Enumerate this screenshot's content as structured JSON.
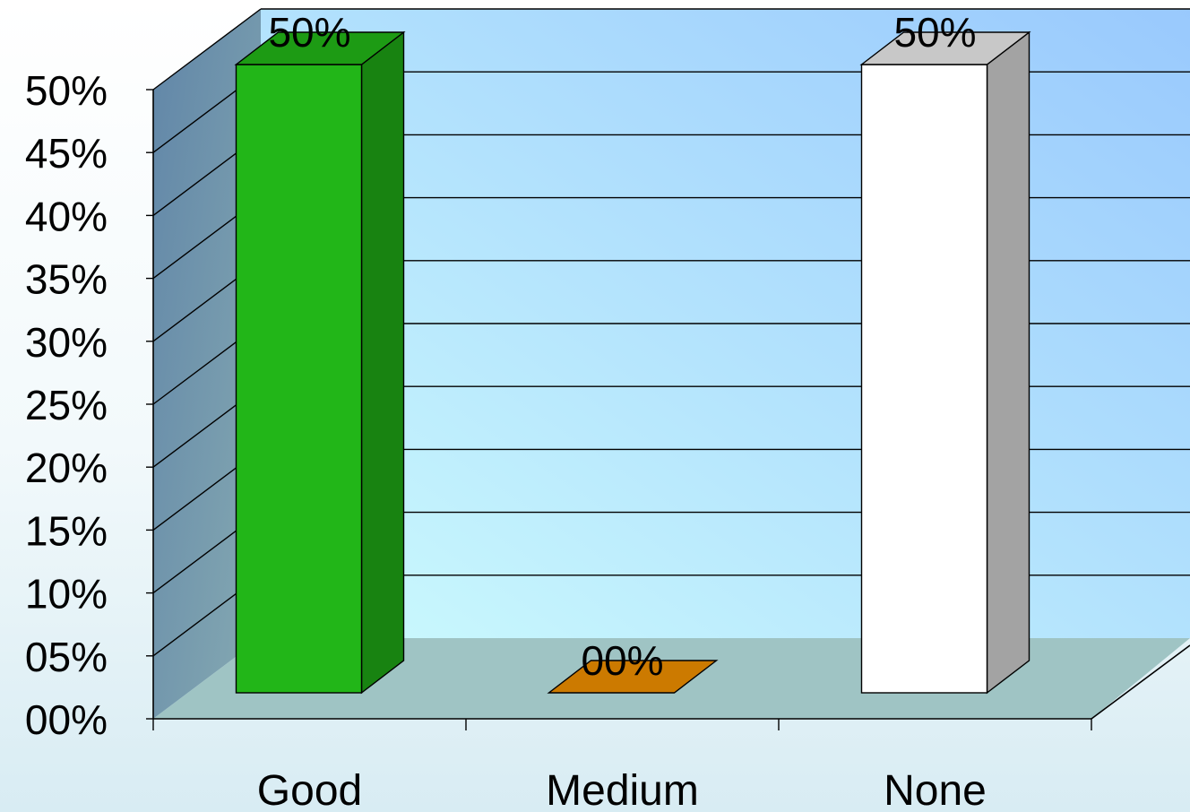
{
  "chart_data": {
    "type": "bar",
    "title": "",
    "xlabel": "",
    "ylabel": "",
    "categories": [
      "Good",
      "Medium",
      "None"
    ],
    "values": [
      50,
      0,
      50
    ],
    "data_labels": [
      "50%",
      "00%",
      "50%"
    ],
    "bar_colors": [
      "#22b618",
      "#cc7a00",
      "#ffffff"
    ],
    "ylim": [
      0,
      50
    ],
    "y_ticks": [
      "00%",
      "05%",
      "10%",
      "15%",
      "20%",
      "25%",
      "30%",
      "35%",
      "40%",
      "45%",
      "50%"
    ],
    "grid": true,
    "legend": "none",
    "style": "3d"
  },
  "colors": {
    "back_wall_light": "#ccfbfd",
    "back_wall_dark": "#99c9fd",
    "side_wall": "#6f93a8",
    "floor": "#9fc4c4",
    "grid_line": "#000000"
  }
}
